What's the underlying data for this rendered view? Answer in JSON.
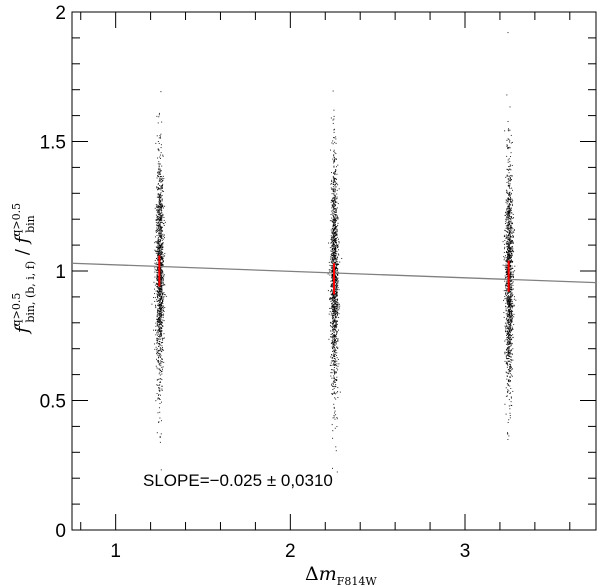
{
  "chart_data": {
    "type": "scatter",
    "title": "",
    "xlabel": "Δm_F814W",
    "ylabel": "f^{q>0.5}_{bin, (b, i, f)} / f^{q>0.5}_{bin}",
    "xlim": [
      0.75,
      3.75
    ],
    "ylim": [
      0,
      2
    ],
    "x_ticks": [
      "1",
      "2",
      "3"
    ],
    "y_ticks": [
      "0",
      "0.5",
      "1",
      "1.5",
      "2"
    ],
    "grid": false,
    "series": [
      {
        "kind": "points",
        "color": "#000000",
        "groups": [
          {
            "x": 1.25,
            "y_min": 0.11,
            "y_max": 1.95,
            "center": 1.0
          },
          {
            "x": 2.25,
            "y_min": 0.07,
            "y_max": 1.78,
            "center": 0.97
          },
          {
            "x": 3.25,
            "y_min": 0.09,
            "y_max": 1.94,
            "center": 0.98
          }
        ]
      },
      {
        "kind": "errorbars",
        "color": "#ff0000",
        "points": [
          {
            "x": 1.25,
            "y": 1.0,
            "err": 0.06
          },
          {
            "x": 2.25,
            "y": 0.97,
            "err": 0.06
          },
          {
            "x": 3.25,
            "y": 0.98,
            "err": 0.06
          }
        ]
      },
      {
        "kind": "fit-line",
        "color": "#808080",
        "x": [
          0.75,
          3.75
        ],
        "y": [
          1.03,
          0.955
        ]
      }
    ],
    "annotation": "SLOPE=−0.025 ± 0,0310"
  },
  "icons": {
    "pm_glyph": "plus-minus"
  }
}
